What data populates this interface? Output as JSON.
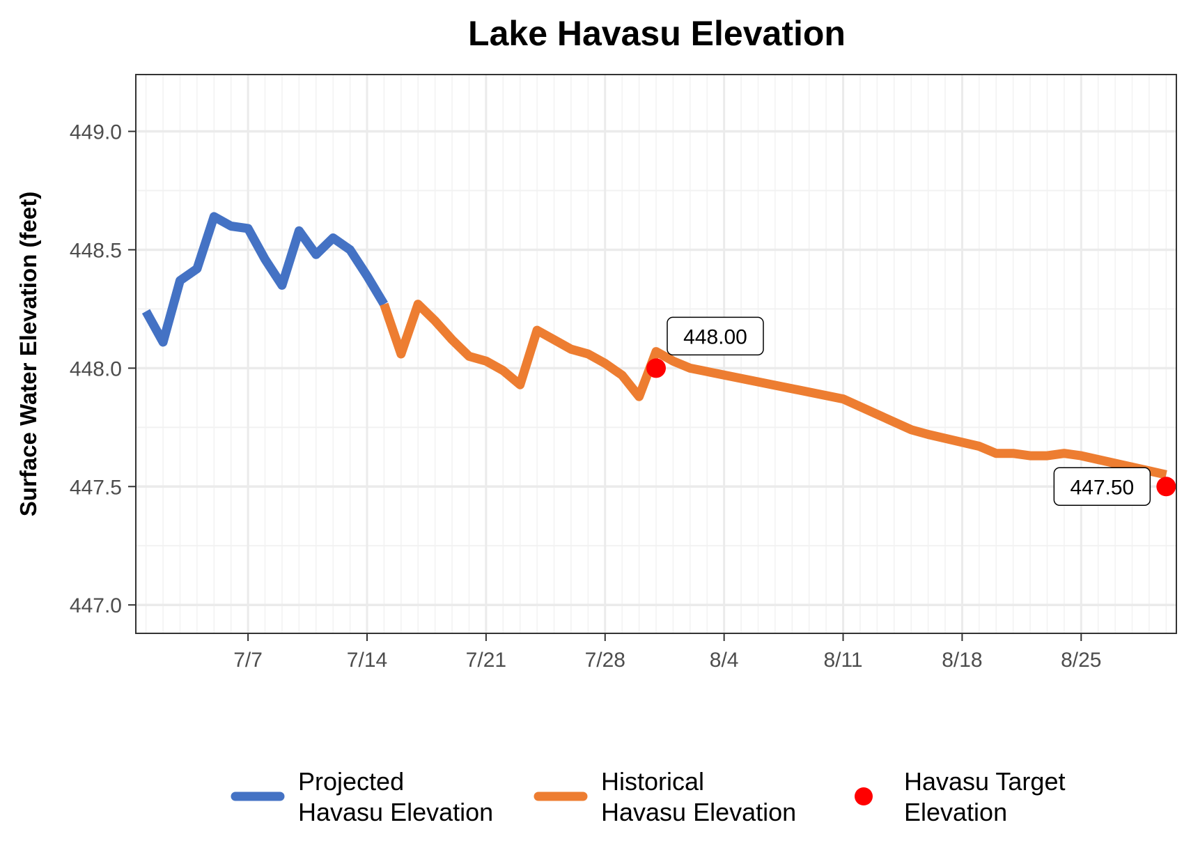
{
  "chart_data": {
    "type": "line",
    "title": "Lake Havasu Elevation",
    "xlabel": "",
    "ylabel": "Surface Water Elevation (feet)",
    "x_axis": {
      "type": "date",
      "year_assumed": 2024,
      "range": [
        "2024-07-01",
        "2024-08-30"
      ],
      "ticks": [
        {
          "date": "2024-07-07",
          "label": "7/7"
        },
        {
          "date": "2024-07-14",
          "label": "7/14"
        },
        {
          "date": "2024-07-21",
          "label": "7/21"
        },
        {
          "date": "2024-07-28",
          "label": "7/28"
        },
        {
          "date": "2024-08-04",
          "label": "8/4"
        },
        {
          "date": "2024-08-11",
          "label": "8/11"
        },
        {
          "date": "2024-08-18",
          "label": "8/18"
        },
        {
          "date": "2024-08-25",
          "label": "8/25"
        }
      ]
    },
    "y_axis": {
      "range": [
        446.88,
        449.24
      ],
      "ticks": [
        {
          "value": 447.0,
          "label": "447.0"
        },
        {
          "value": 447.5,
          "label": "447.5"
        },
        {
          "value": 448.0,
          "label": "448.0"
        },
        {
          "value": 448.5,
          "label": "448.5"
        },
        {
          "value": 449.0,
          "label": "449.0"
        }
      ]
    },
    "grid": true,
    "legend_position": "bottom",
    "series": [
      {
        "name": "Projected\nHavasu Elevation",
        "color": "#4472C4",
        "points": [
          {
            "x": "2024-07-01",
            "y": 448.24
          },
          {
            "x": "2024-07-02",
            "y": 448.11
          },
          {
            "x": "2024-07-03",
            "y": 448.37
          },
          {
            "x": "2024-07-04",
            "y": 448.42
          },
          {
            "x": "2024-07-05",
            "y": 448.64
          },
          {
            "x": "2024-07-06",
            "y": 448.6
          },
          {
            "x": "2024-07-07",
            "y": 448.59
          },
          {
            "x": "2024-07-08",
            "y": 448.46
          },
          {
            "x": "2024-07-09",
            "y": 448.35
          },
          {
            "x": "2024-07-10",
            "y": 448.58
          },
          {
            "x": "2024-07-11",
            "y": 448.48
          },
          {
            "x": "2024-07-12",
            "y": 448.55
          },
          {
            "x": "2024-07-13",
            "y": 448.5
          },
          {
            "x": "2024-07-14",
            "y": 448.39
          },
          {
            "x": "2024-07-15",
            "y": 448.27
          }
        ]
      },
      {
        "name": "Historical\nHavasu Elevation",
        "color": "#ED7D31",
        "points": [
          {
            "x": "2024-07-15",
            "y": 448.27
          },
          {
            "x": "2024-07-16",
            "y": 448.06
          },
          {
            "x": "2024-07-17",
            "y": 448.27
          },
          {
            "x": "2024-07-18",
            "y": 448.2
          },
          {
            "x": "2024-07-19",
            "y": 448.12
          },
          {
            "x": "2024-07-20",
            "y": 448.05
          },
          {
            "x": "2024-07-21",
            "y": 448.03
          },
          {
            "x": "2024-07-22",
            "y": 447.99
          },
          {
            "x": "2024-07-23",
            "y": 447.93
          },
          {
            "x": "2024-07-24",
            "y": 448.16
          },
          {
            "x": "2024-07-25",
            "y": 448.12
          },
          {
            "x": "2024-07-26",
            "y": 448.08
          },
          {
            "x": "2024-07-27",
            "y": 448.06
          },
          {
            "x": "2024-07-28",
            "y": 448.02
          },
          {
            "x": "2024-07-29",
            "y": 447.97
          },
          {
            "x": "2024-07-30",
            "y": 447.88
          },
          {
            "x": "2024-07-31",
            "y": 448.07
          },
          {
            "x": "2024-08-01",
            "y": 448.03
          },
          {
            "x": "2024-08-02",
            "y": 448.0
          },
          {
            "x": "2024-08-11",
            "y": 447.87
          },
          {
            "x": "2024-08-15",
            "y": 447.74
          },
          {
            "x": "2024-08-16",
            "y": 447.72
          },
          {
            "x": "2024-08-19",
            "y": 447.67
          },
          {
            "x": "2024-08-20",
            "y": 447.64
          },
          {
            "x": "2024-08-21",
            "y": 447.64
          },
          {
            "x": "2024-08-22",
            "y": 447.63
          },
          {
            "x": "2024-08-23",
            "y": 447.63
          },
          {
            "x": "2024-08-24",
            "y": 447.64
          },
          {
            "x": "2024-08-25",
            "y": 447.63
          },
          {
            "x": "2024-08-30",
            "y": 447.55
          }
        ]
      }
    ],
    "target_points": {
      "name": "Havasu Target\nElevation",
      "color": "#FF0000",
      "points": [
        {
          "x": "2024-07-31",
          "y": 448.0,
          "label": "448.00",
          "label_side": "upper-right"
        },
        {
          "x": "2024-08-30",
          "y": 447.5,
          "label": "447.50",
          "label_side": "left"
        }
      ]
    }
  },
  "colors": {
    "panel_border": "#333333",
    "grid_major": "#EBEBEB",
    "grid_minor": "#F2F2F2",
    "tick_text": "#4D4D4D"
  }
}
